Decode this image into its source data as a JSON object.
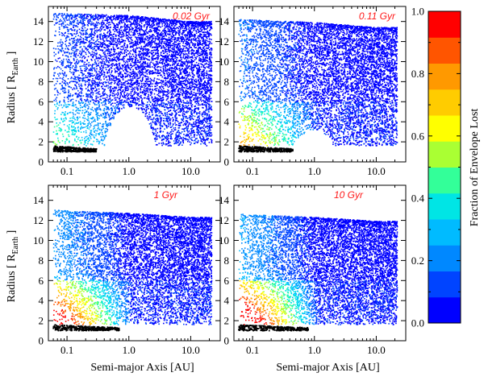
{
  "chart_data": [
    {
      "type": "scatter",
      "panel": "top-left",
      "annotation": "0.02 Gyr",
      "xscale": "log",
      "xlim": [
        0.05,
        30
      ],
      "ylim": [
        0,
        15.5
      ],
      "xticks": [
        "0.1",
        "1.0",
        "10.0"
      ],
      "yticks": [
        "0",
        "2",
        "4",
        "6",
        "8",
        "10",
        "12",
        "14"
      ],
      "xlabel": "",
      "ylabel": "Radius  [ R",
      "ylabel_sub": "Earth",
      "ylabel_end": " ]",
      "color_variable": "Fraction of Envelope Lost",
      "top_edge": [
        [
          0.07,
          14.8
        ],
        [
          1.0,
          14.6
        ],
        [
          10.0,
          14.0
        ]
      ],
      "evaporation_gap": {
        "x_range": [
          0.4,
          2.8
        ],
        "max_radius": 5.5
      },
      "stripped_cores": {
        "x_range": [
          0.06,
          0.3
        ],
        "radius_range": [
          1.0,
          1.6
        ]
      },
      "n_points": 7500
    },
    {
      "type": "scatter",
      "panel": "top-right",
      "annotation": "0.11 Gyr",
      "xscale": "log",
      "xlim": [
        0.05,
        30
      ],
      "ylim": [
        0,
        15.5
      ],
      "xticks": [
        "0.1",
        "1.0",
        "10.0"
      ],
      "yticks": [
        "0",
        "2",
        "4",
        "6",
        "8",
        "10",
        "12",
        "14"
      ],
      "xlabel": "",
      "ylabel": "",
      "color_variable": "Fraction of Envelope Lost",
      "top_edge": [
        [
          0.07,
          14.2
        ],
        [
          1.0,
          13.9
        ],
        [
          10.0,
          13.4
        ]
      ],
      "evaporation_gap": {
        "x_range": [
          0.45,
          2.2
        ],
        "max_radius": 3.2
      },
      "stripped_cores": {
        "x_range": [
          0.06,
          0.45
        ],
        "radius_range": [
          1.0,
          1.6
        ]
      },
      "n_points": 7500
    },
    {
      "type": "scatter",
      "panel": "bottom-left",
      "annotation": "1 Gyr",
      "xscale": "log",
      "xlim": [
        0.05,
        30
      ],
      "ylim": [
        0,
        15.5
      ],
      "xticks": [
        "0.1",
        "1.0",
        "10.0"
      ],
      "yticks": [
        "0",
        "2",
        "4",
        "6",
        "8",
        "10",
        "12",
        "14"
      ],
      "xlabel": "Semi-major Axis  [AU]",
      "ylabel": "Radius  [ R",
      "ylabel_sub": "Earth",
      "ylabel_end": " ]",
      "color_variable": "Fraction of Envelope Lost",
      "top_edge": [
        [
          0.07,
          13.0
        ],
        [
          1.0,
          12.7
        ],
        [
          10.0,
          12.3
        ]
      ],
      "evaporation_gap": {
        "x_range": [
          0.8,
          1.9
        ],
        "max_radius": 1.7
      },
      "stripped_cores": {
        "x_range": [
          0.06,
          0.7
        ],
        "radius_range": [
          1.0,
          1.6
        ]
      },
      "n_points": 7500
    },
    {
      "type": "scatter",
      "panel": "bottom-right",
      "annotation": "10 Gyr",
      "xscale": "log",
      "xlim": [
        0.05,
        30
      ],
      "ylim": [
        0,
        15.5
      ],
      "xticks": [
        "0.1",
        "1.0",
        "10.0"
      ],
      "yticks": [
        "0",
        "2",
        "4",
        "6",
        "8",
        "10",
        "12",
        "14"
      ],
      "xlabel": "Semi-major Axis  [AU]",
      "ylabel": "",
      "color_variable": "Fraction of Envelope Lost",
      "top_edge": [
        [
          0.07,
          12.6
        ],
        [
          1.0,
          12.3
        ],
        [
          10.0,
          11.9
        ]
      ],
      "evaporation_gap": {
        "x_range": [
          0.9,
          1.8
        ],
        "max_radius": 1.5
      },
      "stripped_cores": {
        "x_range": [
          0.06,
          0.8
        ],
        "radius_range": [
          1.0,
          1.6
        ]
      },
      "n_points": 7500
    }
  ],
  "colorbar": {
    "label": "Fraction of Envelope Lost",
    "min": 0.0,
    "max": 1.0,
    "ticks": [
      "0.0",
      "0.2",
      "0.4",
      "0.6",
      "0.8",
      "1.0"
    ],
    "colors": [
      "#0000ff",
      "#0044ff",
      "#0088ff",
      "#00bbff",
      "#00e5e5",
      "#33ff99",
      "#aaff33",
      "#ffff00",
      "#ffcc00",
      "#ff9900",
      "#ff5500",
      "#ff0000"
    ]
  },
  "colors": {
    "frame": "#000000",
    "annotation": "#ff1a1a",
    "core": "#000000"
  }
}
